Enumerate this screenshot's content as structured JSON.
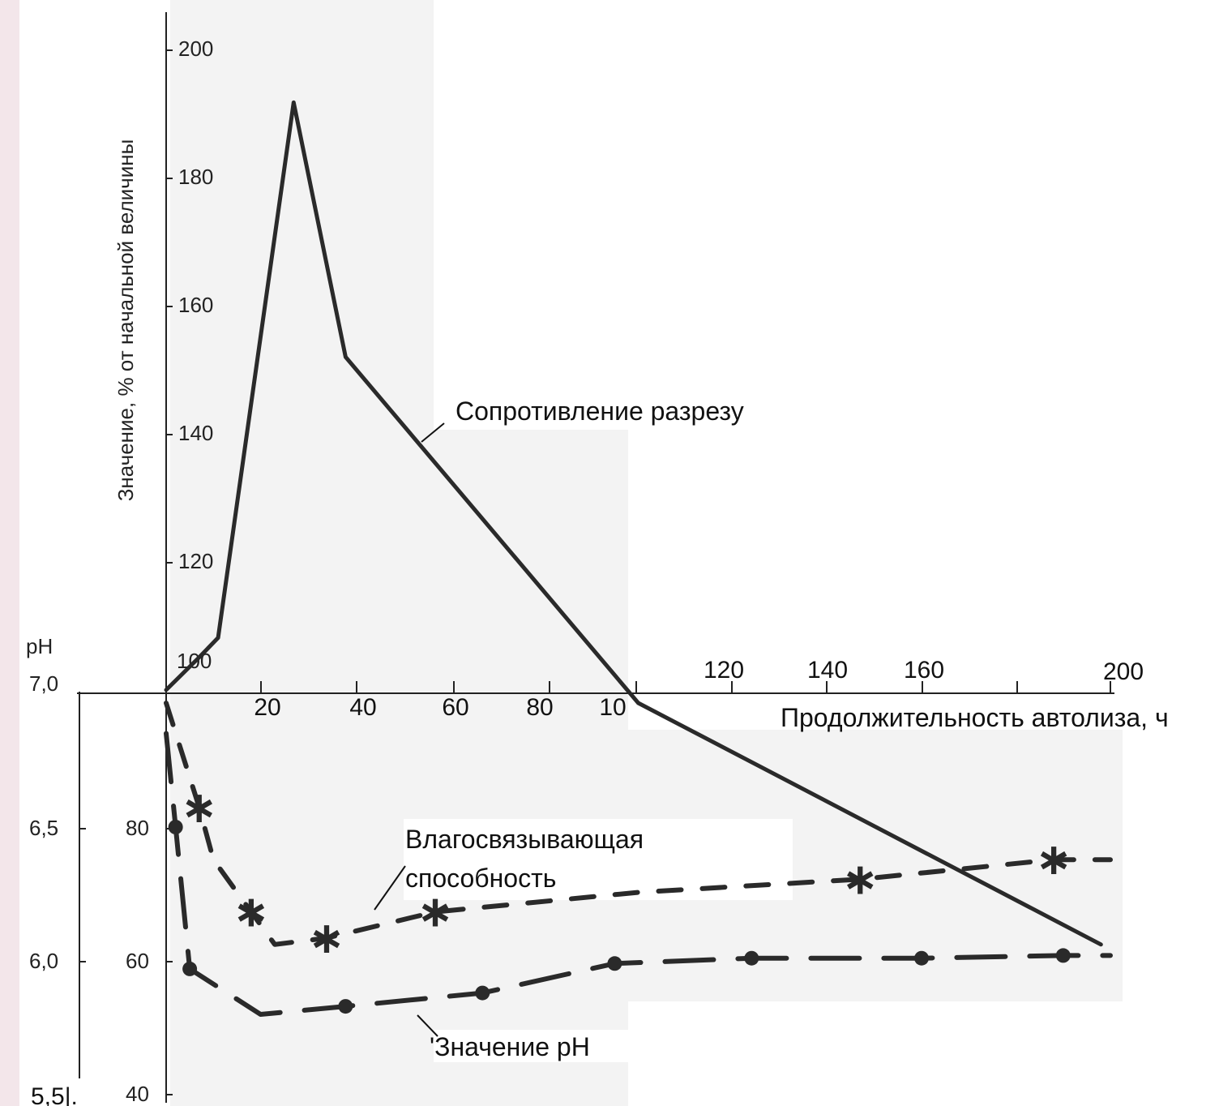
{
  "chart_data": {
    "type": "line",
    "xlabel": "Продолжительность автолиза, ч",
    "ylabel": "Значение, % от начальной величины",
    "ph_axis_label": "pH",
    "x_ticks": [
      "20",
      "40",
      "60",
      "80",
      "10",
      "120",
      "140",
      "160",
      "200"
    ],
    "y_ticks": [
      "200",
      "180",
      "160",
      "140",
      "120",
      "100",
      "80",
      "60",
      "40"
    ],
    "ph_ticks": [
      "7,0",
      "6,5",
      "6,0",
      "5,5|."
    ],
    "xlim": [
      0,
      200
    ],
    "ylim": [
      40,
      200
    ],
    "ph_range": [
      5.5,
      7.0
    ],
    "annotations": {
      "shear": "Сопротивление разрезу",
      "water": "Влагосвязывающая\nспособность",
      "ph": "'Значение pH"
    },
    "series": [
      {
        "key": "shear",
        "style": "solid",
        "x": [
          0,
          7,
          11,
          27,
          38,
          100,
          198
        ],
        "y": [
          102,
          107,
          110,
          192,
          153,
          100,
          63
        ]
      },
      {
        "key": "water",
        "style": "dash-star",
        "markers_x": [
          7,
          18,
          34,
          57,
          147,
          188
        ],
        "x": [
          0,
          7,
          10,
          18,
          23,
          34,
          57,
          100,
          147,
          188,
          200
        ],
        "y": [
          100,
          84,
          76,
          68,
          63,
          64,
          68,
          71,
          73,
          76,
          76
        ]
      },
      {
        "key": "ph",
        "style": "dash-dot",
        "markers_x": [
          2,
          5,
          38,
          67,
          95,
          124,
          160,
          190
        ],
        "x": [
          0,
          2,
          5,
          20,
          38,
          67,
          95,
          124,
          160,
          190,
          200
        ],
        "y": [
          6.85,
          6.5,
          5.97,
          5.8,
          5.83,
          5.88,
          5.99,
          6.01,
          6.01,
          6.02,
          6.02
        ]
      }
    ]
  }
}
